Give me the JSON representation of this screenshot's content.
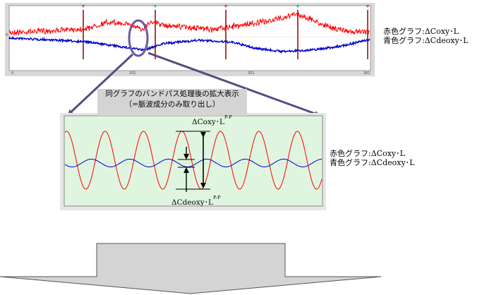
{
  "top_chart": {
    "x_ticks": [
      "0",
      "101",
      "201",
      "301"
    ],
    "y_tick": "0",
    "legend": [
      "赤色グラフ:ΔCoxy･L",
      "青色グラフ:ΔCdeoxy･L"
    ],
    "red_color": "#ff0000",
    "blue_color": "#0000cc"
  },
  "callout": {
    "line1": "同グラフのバンドパス処理後の拡大表示",
    "line2": "（=脈波成分のみ取り出し）"
  },
  "zoom_chart": {
    "legend": [
      "赤色グラフ:ΔCoxy･L",
      "青色グラフ:ΔCdeoxy･L"
    ],
    "top_label": "ΔCoxy･L",
    "top_label_sup": "P-P",
    "bottom_label": "ΔCdeoxy･L",
    "bottom_label_sup": "P-P",
    "background": "#dff5df"
  },
  "colors": {
    "arrow": "#5c4a80",
    "big_arrow_fill": "#d4d4d4",
    "ellipse": "#6a5aa0"
  }
}
